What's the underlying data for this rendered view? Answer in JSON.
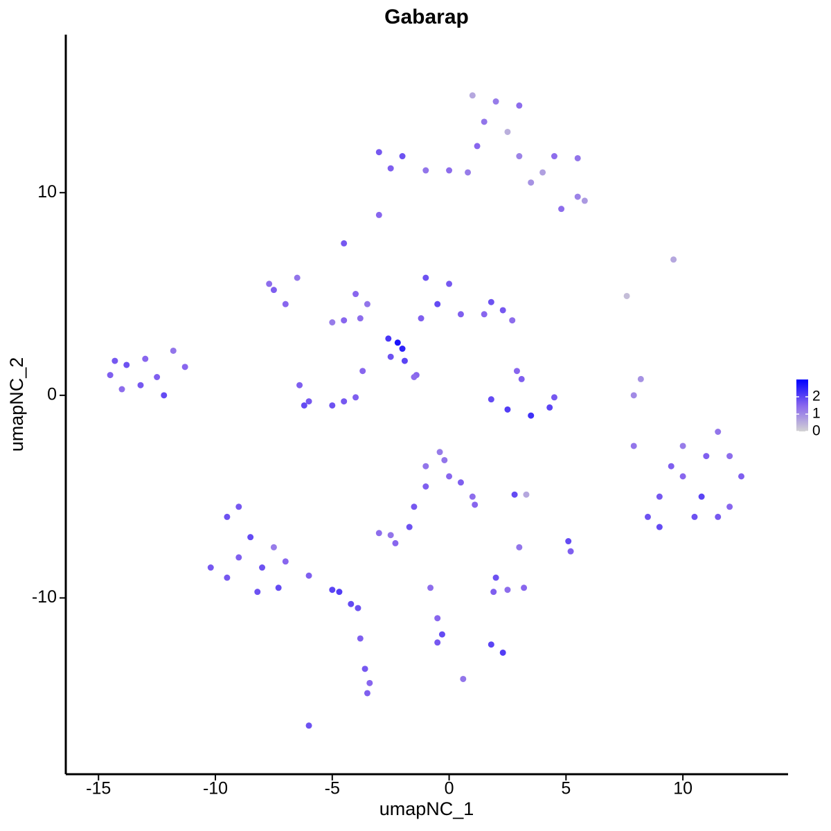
{
  "chart_data": {
    "type": "scatter",
    "title": "Gabarap",
    "x_label": "umapNC_1",
    "y_label": "umapNC_2",
    "xlim": [
      -16.4,
      14.5
    ],
    "ylim": [
      -18.7,
      17.8
    ],
    "xticks": [
      -15,
      -10,
      -5,
      0,
      5,
      10
    ],
    "yticks": [
      -10,
      0,
      10
    ],
    "color_scale": [
      "#d3d3d3",
      "#8866ee",
      "#0000ff"
    ],
    "colorlim": [
      0,
      3
    ],
    "colorticks": [
      0,
      1,
      2
    ],
    "points": [
      {
        "x": -14.5,
        "y": 1,
        "value": 1.6
      },
      {
        "x": -13.8,
        "y": 1.5,
        "value": 1.8
      },
      {
        "x": -13,
        "y": 1.8,
        "value": 1.5
      },
      {
        "x": -13.2,
        "y": 0.5,
        "value": 1.7
      },
      {
        "x": -14,
        "y": 0.3,
        "value": 1.4
      },
      {
        "x": -12.5,
        "y": 0.9,
        "value": 1.6
      },
      {
        "x": -12.2,
        "y": 0,
        "value": 1.9
      },
      {
        "x": -11.8,
        "y": 2.2,
        "value": 1.3
      },
      {
        "x": -11.3,
        "y": 1.4,
        "value": 1.5
      },
      {
        "x": -14.3,
        "y": 1.7,
        "value": 1.7
      },
      {
        "x": -3,
        "y": 8.9,
        "value": 1.5
      },
      {
        "x": 1,
        "y": 14.8,
        "value": 0.6
      },
      {
        "x": 2,
        "y": 14.5,
        "value": 1.2
      },
      {
        "x": 3,
        "y": 14.3,
        "value": 1.4
      },
      {
        "x": 1.5,
        "y": 13.5,
        "value": 1.3
      },
      {
        "x": 2.5,
        "y": 13,
        "value": 0.5
      },
      {
        "x": 1.2,
        "y": 12.3,
        "value": 1.5
      },
      {
        "x": 3,
        "y": 11.8,
        "value": 1.1
      },
      {
        "x": 4.5,
        "y": 11.8,
        "value": 1.4
      },
      {
        "x": 5.5,
        "y": 11.7,
        "value": 1.3
      },
      {
        "x": 4,
        "y": 11,
        "value": 0.7
      },
      {
        "x": 5.5,
        "y": 9.8,
        "value": 1.1
      },
      {
        "x": 5.8,
        "y": 9.6,
        "value": 0.8
      },
      {
        "x": 4.8,
        "y": 9.2,
        "value": 1.4
      },
      {
        "x": -3,
        "y": 12,
        "value": 1.7
      },
      {
        "x": -2,
        "y": 11.8,
        "value": 1.8
      },
      {
        "x": -2.5,
        "y": 11.2,
        "value": 1.6
      },
      {
        "x": -1,
        "y": 11.1,
        "value": 1.3
      },
      {
        "x": 0,
        "y": 11.1,
        "value": 1.4
      },
      {
        "x": 0.8,
        "y": 11,
        "value": 1.2
      },
      {
        "x": 3.5,
        "y": 10.5,
        "value": 0.9
      },
      {
        "x": -7.5,
        "y": 5.2,
        "value": 1.6
      },
      {
        "x": -7,
        "y": 4.5,
        "value": 1.5
      },
      {
        "x": -6.5,
        "y": 5.8,
        "value": 1.3
      },
      {
        "x": -7.7,
        "y": 5.5,
        "value": 1.4
      },
      {
        "x": -4.5,
        "y": 3.7,
        "value": 1.5
      },
      {
        "x": -5,
        "y": 3.6,
        "value": 1.2
      },
      {
        "x": -3.8,
        "y": 3.8,
        "value": 1.4
      },
      {
        "x": -4.5,
        "y": 7.5,
        "value": 1.7
      },
      {
        "x": -4,
        "y": 5,
        "value": 1.5
      },
      {
        "x": -3.5,
        "y": 4.5,
        "value": 1.3
      },
      {
        "x": -1,
        "y": 5.8,
        "value": 1.8
      },
      {
        "x": 0,
        "y": 5.5,
        "value": 1.7
      },
      {
        "x": -0.5,
        "y": 4.5,
        "value": 1.9
      },
      {
        "x": 0.5,
        "y": 4,
        "value": 1.6
      },
      {
        "x": 1.5,
        "y": 4,
        "value": 1.5
      },
      {
        "x": 2.3,
        "y": 4.2,
        "value": 1.7
      },
      {
        "x": 2.7,
        "y": 3.7,
        "value": 1.4
      },
      {
        "x": 1.8,
        "y": 4.6,
        "value": 1.8
      },
      {
        "x": -1.2,
        "y": 3.8,
        "value": 1.6
      },
      {
        "x": -6.4,
        "y": 0.5,
        "value": 1.6
      },
      {
        "x": -6,
        "y": -0.3,
        "value": 1.7
      },
      {
        "x": -5,
        "y": -0.5,
        "value": 1.8
      },
      {
        "x": -4,
        "y": -0.1,
        "value": 1.6
      },
      {
        "x": -3.7,
        "y": 1.2,
        "value": 1.5
      },
      {
        "x": -6.2,
        "y": -0.5,
        "value": 1.9
      },
      {
        "x": -4.5,
        "y": -0.3,
        "value": 1.7
      },
      {
        "x": 1.8,
        "y": -0.2,
        "value": 1.9
      },
      {
        "x": 2.5,
        "y": -0.7,
        "value": 2.1
      },
      {
        "x": 3.5,
        "y": -1,
        "value": 2.3
      },
      {
        "x": 4.3,
        "y": -0.6,
        "value": 2.0
      },
      {
        "x": 4.5,
        "y": -0.1,
        "value": 1.7
      },
      {
        "x": 3.1,
        "y": 0.8,
        "value": 1.6
      },
      {
        "x": 2.9,
        "y": 1.2,
        "value": 1.5
      },
      {
        "x": -2.2,
        "y": 2.6,
        "value": 2.7
      },
      {
        "x": -2.6,
        "y": 2.8,
        "value": 2.2
      },
      {
        "x": -2,
        "y": 2.3,
        "value": 2.5
      },
      {
        "x": -1.4,
        "y": 1,
        "value": 1.5
      },
      {
        "x": -1.5,
        "y": 0.9,
        "value": 1.4
      },
      {
        "x": -1.9,
        "y": 1.7,
        "value": 2.0
      },
      {
        "x": -2.5,
        "y": 1.9,
        "value": 1.8
      },
      {
        "x": 9,
        "y": -5,
        "value": 1.7
      },
      {
        "x": 10,
        "y": -4,
        "value": 1.5
      },
      {
        "x": 11,
        "y": -3,
        "value": 1.6
      },
      {
        "x": 12,
        "y": -3,
        "value": 1.4
      },
      {
        "x": 12.5,
        "y": -4,
        "value": 1.6
      },
      {
        "x": 10.5,
        "y": -6,
        "value": 1.8
      },
      {
        "x": 9,
        "y": -6.5,
        "value": 1.9
      },
      {
        "x": 11.5,
        "y": -6,
        "value": 1.7
      },
      {
        "x": 10,
        "y": -2.5,
        "value": 1.2
      },
      {
        "x": 11.5,
        "y": -1.8,
        "value": 1.3
      },
      {
        "x": 8.5,
        "y": -6,
        "value": 1.8
      },
      {
        "x": 12,
        "y": -5.5,
        "value": 1.5
      },
      {
        "x": 9.5,
        "y": -3.5,
        "value": 1.6
      },
      {
        "x": 10.8,
        "y": -5,
        "value": 2.0
      },
      {
        "x": 7.6,
        "y": 4.9,
        "value": 0.3
      },
      {
        "x": 9.6,
        "y": 6.7,
        "value": 0.6
      },
      {
        "x": 8.2,
        "y": 0.8,
        "value": 0.9
      },
      {
        "x": 7.9,
        "y": 0,
        "value": 1.0
      },
      {
        "x": 7.9,
        "y": -2.5,
        "value": 1.3
      },
      {
        "x": -1,
        "y": -3.5,
        "value": 1.3
      },
      {
        "x": -0.4,
        "y": -2.8,
        "value": 1.2
      },
      {
        "x": 0,
        "y": -4,
        "value": 1.5
      },
      {
        "x": 0.5,
        "y": -4.3,
        "value": 1.6
      },
      {
        "x": 1,
        "y": -5,
        "value": 1.4
      },
      {
        "x": 1.1,
        "y": -5.4,
        "value": 1.5
      },
      {
        "x": -1,
        "y": -4.5,
        "value": 1.6
      },
      {
        "x": -0.2,
        "y": -3.2,
        "value": 1.3
      },
      {
        "x": -1.5,
        "y": -5.5,
        "value": 1.7
      },
      {
        "x": -1.7,
        "y": -6.5,
        "value": 1.8
      },
      {
        "x": -3,
        "y": -6.8,
        "value": 1.4
      },
      {
        "x": -2.3,
        "y": -7.3,
        "value": 1.5
      },
      {
        "x": -2.5,
        "y": -6.9,
        "value": 1.3
      },
      {
        "x": 2.8,
        "y": -4.9,
        "value": 1.9
      },
      {
        "x": 3.3,
        "y": -4.9,
        "value": 0.6
      },
      {
        "x": -9.5,
        "y": -6,
        "value": 1.8
      },
      {
        "x": -9,
        "y": -5.5,
        "value": 1.7
      },
      {
        "x": -8.5,
        "y": -7,
        "value": 1.9
      },
      {
        "x": -9,
        "y": -8,
        "value": 1.6
      },
      {
        "x": -10.2,
        "y": -8.5,
        "value": 1.7
      },
      {
        "x": -8,
        "y": -8.5,
        "value": 1.8
      },
      {
        "x": -7.5,
        "y": -7.5,
        "value": 1.2
      },
      {
        "x": -9.5,
        "y": -9,
        "value": 1.7
      },
      {
        "x": -8.2,
        "y": -9.7,
        "value": 1.8
      },
      {
        "x": -7.3,
        "y": -9.5,
        "value": 1.9
      },
      {
        "x": -7,
        "y": -8.2,
        "value": 1.5
      },
      {
        "x": -6,
        "y": -8.9,
        "value": 1.6
      },
      {
        "x": -5,
        "y": -9.6,
        "value": 2.0
      },
      {
        "x": -4.7,
        "y": -9.7,
        "value": 2.1
      },
      {
        "x": -4.2,
        "y": -10.3,
        "value": 1.9
      },
      {
        "x": -3.9,
        "y": -10.5,
        "value": 1.8
      },
      {
        "x": -3.8,
        "y": -12,
        "value": 1.6
      },
      {
        "x": -3.6,
        "y": -13.5,
        "value": 1.7
      },
      {
        "x": -3.5,
        "y": -14.7,
        "value": 1.6
      },
      {
        "x": -3.4,
        "y": -14.2,
        "value": 1.5
      },
      {
        "x": -6,
        "y": -16.3,
        "value": 1.8
      },
      {
        "x": -0.8,
        "y": -9.5,
        "value": 1.4
      },
      {
        "x": -0.5,
        "y": -11,
        "value": 1.5
      },
      {
        "x": -0.3,
        "y": -11.8,
        "value": 1.9
      },
      {
        "x": -0.5,
        "y": -12.2,
        "value": 1.7
      },
      {
        "x": 0.6,
        "y": -14,
        "value": 1.3
      },
      {
        "x": 1.9,
        "y": -9.7,
        "value": 1.6
      },
      {
        "x": 2.5,
        "y": -9.6,
        "value": 1.4
      },
      {
        "x": 3.2,
        "y": -9.5,
        "value": 1.5
      },
      {
        "x": 2,
        "y": -9,
        "value": 1.8
      },
      {
        "x": 1.8,
        "y": -12.3,
        "value": 2.0
      },
      {
        "x": 2.3,
        "y": -12.7,
        "value": 2.1
      },
      {
        "x": 3,
        "y": -7.5,
        "value": 1.3
      },
      {
        "x": 5.1,
        "y": -7.2,
        "value": 1.9
      },
      {
        "x": 5.2,
        "y": -7.7,
        "value": 1.6
      }
    ]
  }
}
